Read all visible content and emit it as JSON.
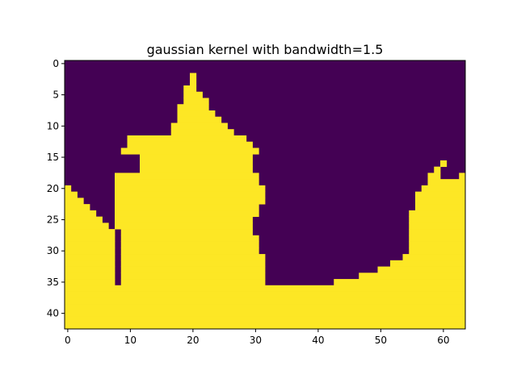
{
  "chart_data": {
    "type": "heatmap",
    "title": "gaussian kernel with bandwidth=1.5",
    "xlabel": "",
    "ylabel": "",
    "xlim": [
      -0.5,
      63.5
    ],
    "ylim": [
      42.5,
      -0.5
    ],
    "x_ticks": [
      0,
      10,
      20,
      30,
      40,
      50,
      60
    ],
    "y_ticks": [
      0,
      5,
      10,
      15,
      20,
      25,
      30,
      35,
      40
    ],
    "colormap": {
      "0": "#440154",
      "1": "#fde725"
    },
    "grid": false,
    "legend": "none",
    "n_rows": 43,
    "n_cols": 64,
    "row_runs": [
      [],
      [],
      [
        [
          20,
          20
        ]
      ],
      [
        [
          20,
          20
        ]
      ],
      [
        [
          19,
          20
        ]
      ],
      [
        [
          19,
          21
        ]
      ],
      [
        [
          19,
          22
        ]
      ],
      [
        [
          18,
          22
        ]
      ],
      [
        [
          18,
          23
        ]
      ],
      [
        [
          18,
          24
        ]
      ],
      [
        [
          17,
          25
        ]
      ],
      [
        [
          17,
          26
        ]
      ],
      [
        [
          10,
          28
        ]
      ],
      [
        [
          10,
          29
        ]
      ],
      [
        [
          9,
          30
        ]
      ],
      [
        [
          12,
          29
        ]
      ],
      [
        [
          12,
          29
        ],
        [
          60,
          60
        ]
      ],
      [
        [
          12,
          29
        ],
        [
          59,
          59
        ]
      ],
      [
        [
          8,
          30
        ],
        [
          58,
          59
        ],
        [
          63,
          63
        ]
      ],
      [
        [
          8,
          30
        ],
        [
          58,
          63
        ]
      ],
      [
        [
          0,
          0
        ],
        [
          8,
          31
        ],
        [
          57,
          63
        ]
      ],
      [
        [
          0,
          1
        ],
        [
          8,
          31
        ],
        [
          56,
          63
        ]
      ],
      [
        [
          0,
          2
        ],
        [
          8,
          31
        ],
        [
          56,
          63
        ]
      ],
      [
        [
          0,
          3
        ],
        [
          8,
          30
        ],
        [
          56,
          63
        ]
      ],
      [
        [
          0,
          4
        ],
        [
          8,
          30
        ],
        [
          55,
          63
        ]
      ],
      [
        [
          0,
          5
        ],
        [
          8,
          29
        ],
        [
          55,
          63
        ]
      ],
      [
        [
          0,
          6
        ],
        [
          8,
          29
        ],
        [
          55,
          63
        ]
      ],
      [
        [
          0,
          7
        ],
        [
          9,
          29
        ],
        [
          55,
          63
        ]
      ],
      [
        [
          0,
          7
        ],
        [
          9,
          30
        ],
        [
          55,
          63
        ]
      ],
      [
        [
          0,
          7
        ],
        [
          9,
          30
        ],
        [
          55,
          63
        ]
      ],
      [
        [
          0,
          7
        ],
        [
          9,
          30
        ],
        [
          55,
          63
        ]
      ],
      [
        [
          0,
          7
        ],
        [
          9,
          31
        ],
        [
          54,
          63
        ]
      ],
      [
        [
          0,
          7
        ],
        [
          9,
          31
        ],
        [
          52,
          63
        ]
      ],
      [
        [
          0,
          7
        ],
        [
          9,
          31
        ],
        [
          50,
          63
        ]
      ],
      [
        [
          0,
          7
        ],
        [
          9,
          31
        ],
        [
          47,
          63
        ]
      ],
      [
        [
          0,
          7
        ],
        [
          9,
          31
        ],
        [
          43,
          63
        ]
      ],
      [
        [
          0,
          63
        ]
      ],
      [
        [
          0,
          63
        ]
      ],
      [
        [
          0,
          63
        ]
      ],
      [
        [
          0,
          63
        ]
      ],
      [
        [
          0,
          63
        ]
      ],
      [
        [
          0,
          63
        ]
      ],
      [
        [
          0,
          63
        ]
      ]
    ]
  }
}
